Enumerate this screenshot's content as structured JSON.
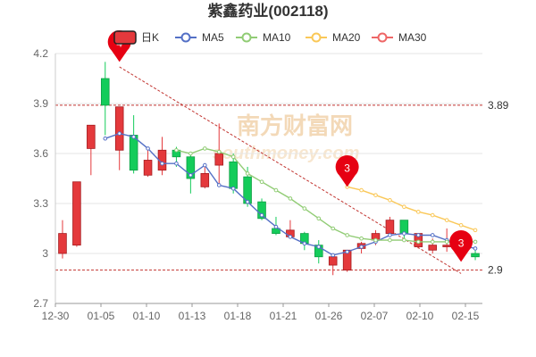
{
  "chart_data": {
    "type": "candlestick",
    "title": "紫鑫药业(002118)",
    "legend": [
      {
        "name": "日K",
        "color": "#e4393c",
        "icon": "candle-box"
      },
      {
        "name": "MA5",
        "color": "#5470c6",
        "icon": "line-circle"
      },
      {
        "name": "MA10",
        "color": "#91cc75",
        "icon": "line-circle"
      },
      {
        "name": "MA20",
        "color": "#fac858",
        "icon": "line-circle"
      },
      {
        "name": "MA30",
        "color": "#ee6666",
        "icon": "line-circle"
      }
    ],
    "x_tick_labels": [
      "12-30",
      "01-05",
      "01-10",
      "01-13",
      "01-18",
      "01-21",
      "01-26",
      "02-07",
      "02-10",
      "02-15"
    ],
    "ylim": [
      2.7,
      4.2
    ],
    "y_ticks": [
      2.7,
      3,
      3.3,
      3.6,
      3.9,
      4.2
    ],
    "y_tick_labels": [
      "2.7",
      "3",
      "3.3",
      "3.6",
      "3.9",
      "4.2"
    ],
    "reference_lines": [
      {
        "value": 3.89,
        "label": "3.89"
      },
      {
        "value": 2.9,
        "label": "2.9"
      }
    ],
    "markers": [
      {
        "label": "4",
        "index": 4,
        "value": 4.15
      },
      {
        "label": "3",
        "index": 20,
        "value": 3.4
      },
      {
        "label": "3",
        "index": 28,
        "value": 2.95
      }
    ],
    "trend_line": {
      "from": {
        "index": 4,
        "value": 4.12
      },
      "to": {
        "index": 28,
        "value": 2.88
      }
    },
    "up_color": "#e4393c",
    "down_color": "#14cc5a",
    "watermark": "南方财富网",
    "watermark_sub": "southmoney.com",
    "candles": [
      {
        "date": "12-30",
        "open": 3.0,
        "close": 3.12,
        "low": 2.97,
        "high": 3.2
      },
      {
        "date": "12-31",
        "open": 3.05,
        "close": 3.43,
        "low": 3.04,
        "high": 3.43
      },
      {
        "date": "01-03",
        "open": 3.63,
        "close": 3.77,
        "low": 3.47,
        "high": 3.77
      },
      {
        "date": "01-04",
        "open": 4.05,
        "close": 3.89,
        "low": 3.71,
        "high": 4.15
      },
      {
        "date": "01-05",
        "open": 3.62,
        "close": 3.88,
        "low": 3.5,
        "high": 3.88
      },
      {
        "date": "01-06",
        "open": 3.71,
        "close": 3.5,
        "low": 3.48,
        "high": 3.83
      },
      {
        "date": "01-07",
        "open": 3.47,
        "close": 3.56,
        "low": 3.46,
        "high": 3.63
      },
      {
        "date": "01-10",
        "open": 3.5,
        "close": 3.62,
        "low": 3.47,
        "high": 3.7
      },
      {
        "date": "01-11",
        "open": 3.62,
        "close": 3.58,
        "low": 3.52,
        "high": 3.64
      },
      {
        "date": "01-12",
        "open": 3.58,
        "close": 3.45,
        "low": 3.36,
        "high": 3.6
      },
      {
        "date": "01-13",
        "open": 3.4,
        "close": 3.48,
        "low": 3.39,
        "high": 3.52
      },
      {
        "date": "01-14",
        "open": 3.53,
        "close": 3.6,
        "low": 3.4,
        "high": 3.78
      },
      {
        "date": "01-17",
        "open": 3.55,
        "close": 3.39,
        "low": 3.36,
        "high": 3.6
      },
      {
        "date": "01-18",
        "open": 3.46,
        "close": 3.3,
        "low": 3.28,
        "high": 3.52
      },
      {
        "date": "01-19",
        "open": 3.31,
        "close": 3.21,
        "low": 3.2,
        "high": 3.33
      },
      {
        "date": "01-20",
        "open": 3.15,
        "close": 3.12,
        "low": 3.11,
        "high": 3.22
      },
      {
        "date": "01-21",
        "open": 3.1,
        "close": 3.14,
        "low": 3.09,
        "high": 3.2
      },
      {
        "date": "01-24",
        "open": 3.12,
        "close": 3.06,
        "low": 3.02,
        "high": 3.13
      },
      {
        "date": "01-25",
        "open": 3.05,
        "close": 2.98,
        "low": 2.94,
        "high": 3.08
      },
      {
        "date": "01-26",
        "open": 2.93,
        "close": 2.98,
        "low": 2.87,
        "high": 3.0
      },
      {
        "date": "01-27",
        "open": 2.9,
        "close": 3.02,
        "low": 2.89,
        "high": 3.02
      },
      {
        "date": "01-28",
        "open": 3.03,
        "close": 3.06,
        "low": 3.0,
        "high": 3.07
      },
      {
        "date": "02-07",
        "open": 3.08,
        "close": 3.12,
        "low": 3.05,
        "high": 3.14
      },
      {
        "date": "02-08",
        "open": 3.12,
        "close": 3.2,
        "low": 3.1,
        "high": 3.22
      },
      {
        "date": "02-09",
        "open": 3.2,
        "close": 3.12,
        "low": 3.07,
        "high": 3.2
      },
      {
        "date": "02-10",
        "open": 3.04,
        "close": 3.12,
        "low": 3.03,
        "high": 3.12
      },
      {
        "date": "02-11",
        "open": 3.02,
        "close": 3.05,
        "low": 3.0,
        "high": 3.09
      },
      {
        "date": "02-14",
        "open": 3.04,
        "close": 3.05,
        "low": 3.01,
        "high": 3.15
      },
      {
        "date": "02-15",
        "open": 3.05,
        "close": 3.03,
        "low": 3.01,
        "high": 3.06
      },
      {
        "date": "02-16",
        "open": 3.0,
        "close": 2.98,
        "low": 2.96,
        "high": 3.02
      }
    ],
    "ma": {
      "MA5": [
        null,
        null,
        null,
        3.69,
        3.72,
        3.7,
        3.63,
        3.54,
        3.54,
        3.47,
        3.53,
        3.41,
        3.39,
        3.31,
        3.23,
        3.16,
        3.1,
        3.06,
        3.04,
        2.99,
        3.01,
        3.04,
        3.07,
        3.11,
        3.12,
        3.11,
        3.11,
        3.08,
        3.05,
        3.03
      ],
      "MA10": [
        null,
        null,
        null,
        null,
        null,
        null,
        null,
        null,
        3.62,
        3.6,
        3.63,
        3.61,
        3.58,
        3.48,
        3.43,
        3.38,
        3.33,
        3.27,
        3.21,
        3.15,
        3.11,
        3.09,
        3.08,
        3.08,
        3.08,
        3.07,
        3.07,
        3.07,
        3.07,
        3.07
      ],
      "MA20": [
        null,
        null,
        null,
        null,
        null,
        null,
        null,
        null,
        null,
        null,
        null,
        null,
        null,
        null,
        null,
        null,
        null,
        null,
        null,
        null,
        3.4,
        3.38,
        3.35,
        3.32,
        3.28,
        3.25,
        3.23,
        3.2,
        3.17,
        3.14
      ],
      "MA30": []
    }
  }
}
